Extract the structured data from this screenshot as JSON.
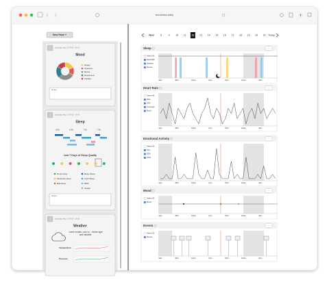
{
  "browser": {
    "url": "trendview.daily"
  },
  "sidebar": {
    "new_pane": "New Pane +",
    "panes": [
      {
        "time": "Saturday, May 23 04:06 - 06:00",
        "title": "Mood",
        "legend": [
          "Happy",
          "Stressed",
          "Bored",
          "Depressed",
          "Irritable"
        ],
        "legend_colors": [
          "#f2c94c",
          "#e05a5a",
          "#8c8c8c",
          "#2f7f86",
          "#c93a4a"
        ],
        "values": [
          18,
          14,
          30,
          22,
          16
        ],
        "notes": "Notes"
      },
      {
        "time": "Saturday, May 23 04:06 - 06:00",
        "title": "Sleep",
        "times": [
          "6:00",
          "6:30",
          "7:00",
          "7:30"
        ],
        "subtitle": "Last 7 Days of Sleep Quality",
        "legend": [
          "Good sleep",
          "Moderate sleep",
          "Bad sleep",
          "Deep Sleep",
          "Light Sleep",
          "REM",
          "Awake"
        ],
        "legend_colors": [
          "#2fae5b",
          "#f2c94c",
          "#e05a5a",
          "#1f5f8b",
          "#3fa3c9",
          "#7fb8e0",
          "#f08a9a"
        ],
        "notes": "Notes"
      },
      {
        "time": "Saturday, May 23 04:06 - 06:00",
        "title": "Weather",
        "description": "Some clouds. Low 42°. Winds light and variable.",
        "metrics": [
          "Temperature",
          "Pressure"
        ]
      }
    ]
  },
  "date_bar": {
    "month": "Nov",
    "days": [
      "8",
      "9",
      "10",
      "11",
      "12",
      "13",
      "14",
      "15",
      "16",
      "17",
      "18",
      "19",
      "20",
      "21"
    ],
    "selected": "12",
    "today": "Today"
  },
  "panels": [
    {
      "title": "Sleep",
      "options": [
        "Select All",
        "Day/Night",
        "Weather",
        "Events"
      ],
      "xticks": [
        "4am",
        "8am",
        "12pm",
        "4pm",
        "8pm",
        "12am",
        "4am"
      ]
    },
    {
      "title": "Heart Rate",
      "options": [
        "Select All",
        "Rate",
        "HRV",
        "Coverage",
        "Mood"
      ],
      "xticks": [
        "4am",
        "8am",
        "12pm",
        "4pm",
        "8pm",
        "12am",
        "4am"
      ],
      "line": [
        5,
        6,
        4,
        7,
        5,
        3,
        6,
        5,
        4,
        6,
        7,
        5,
        4,
        3,
        5,
        6,
        8,
        5,
        4,
        6,
        5,
        3,
        4,
        6,
        5,
        7,
        4,
        5,
        6,
        3,
        5,
        6,
        4,
        7,
        5,
        6,
        4,
        5,
        6,
        5
      ]
    },
    {
      "title": "Emotional Activity",
      "options": [
        "Select All",
        "SCL",
        "EDA",
        "SCR"
      ],
      "xticks": [
        "4am",
        "8am",
        "12pm",
        "4pm",
        "8pm",
        "12am",
        "4am"
      ],
      "line": [
        1,
        1,
        2,
        1,
        1,
        6,
        1,
        1,
        2,
        1,
        1,
        1,
        7,
        2,
        1,
        1,
        3,
        1,
        1,
        8,
        2,
        1,
        1,
        1,
        5,
        1,
        2,
        1,
        1,
        6,
        1,
        1,
        1,
        2,
        1,
        4,
        1,
        1,
        2,
        1
      ]
    },
    {
      "title": "Mood",
      "options": [
        "Select All",
        "Mood"
      ],
      "xticks": [
        "4am",
        "8am",
        "12pm",
        "4pm",
        "8pm",
        "12am",
        "4am"
      ]
    },
    {
      "title": "Events",
      "options": [
        "Select All",
        "Events"
      ],
      "xticks": [
        "4am",
        "8am",
        "12pm",
        "4pm",
        "8pm",
        "12am",
        "4am"
      ]
    }
  ]
}
